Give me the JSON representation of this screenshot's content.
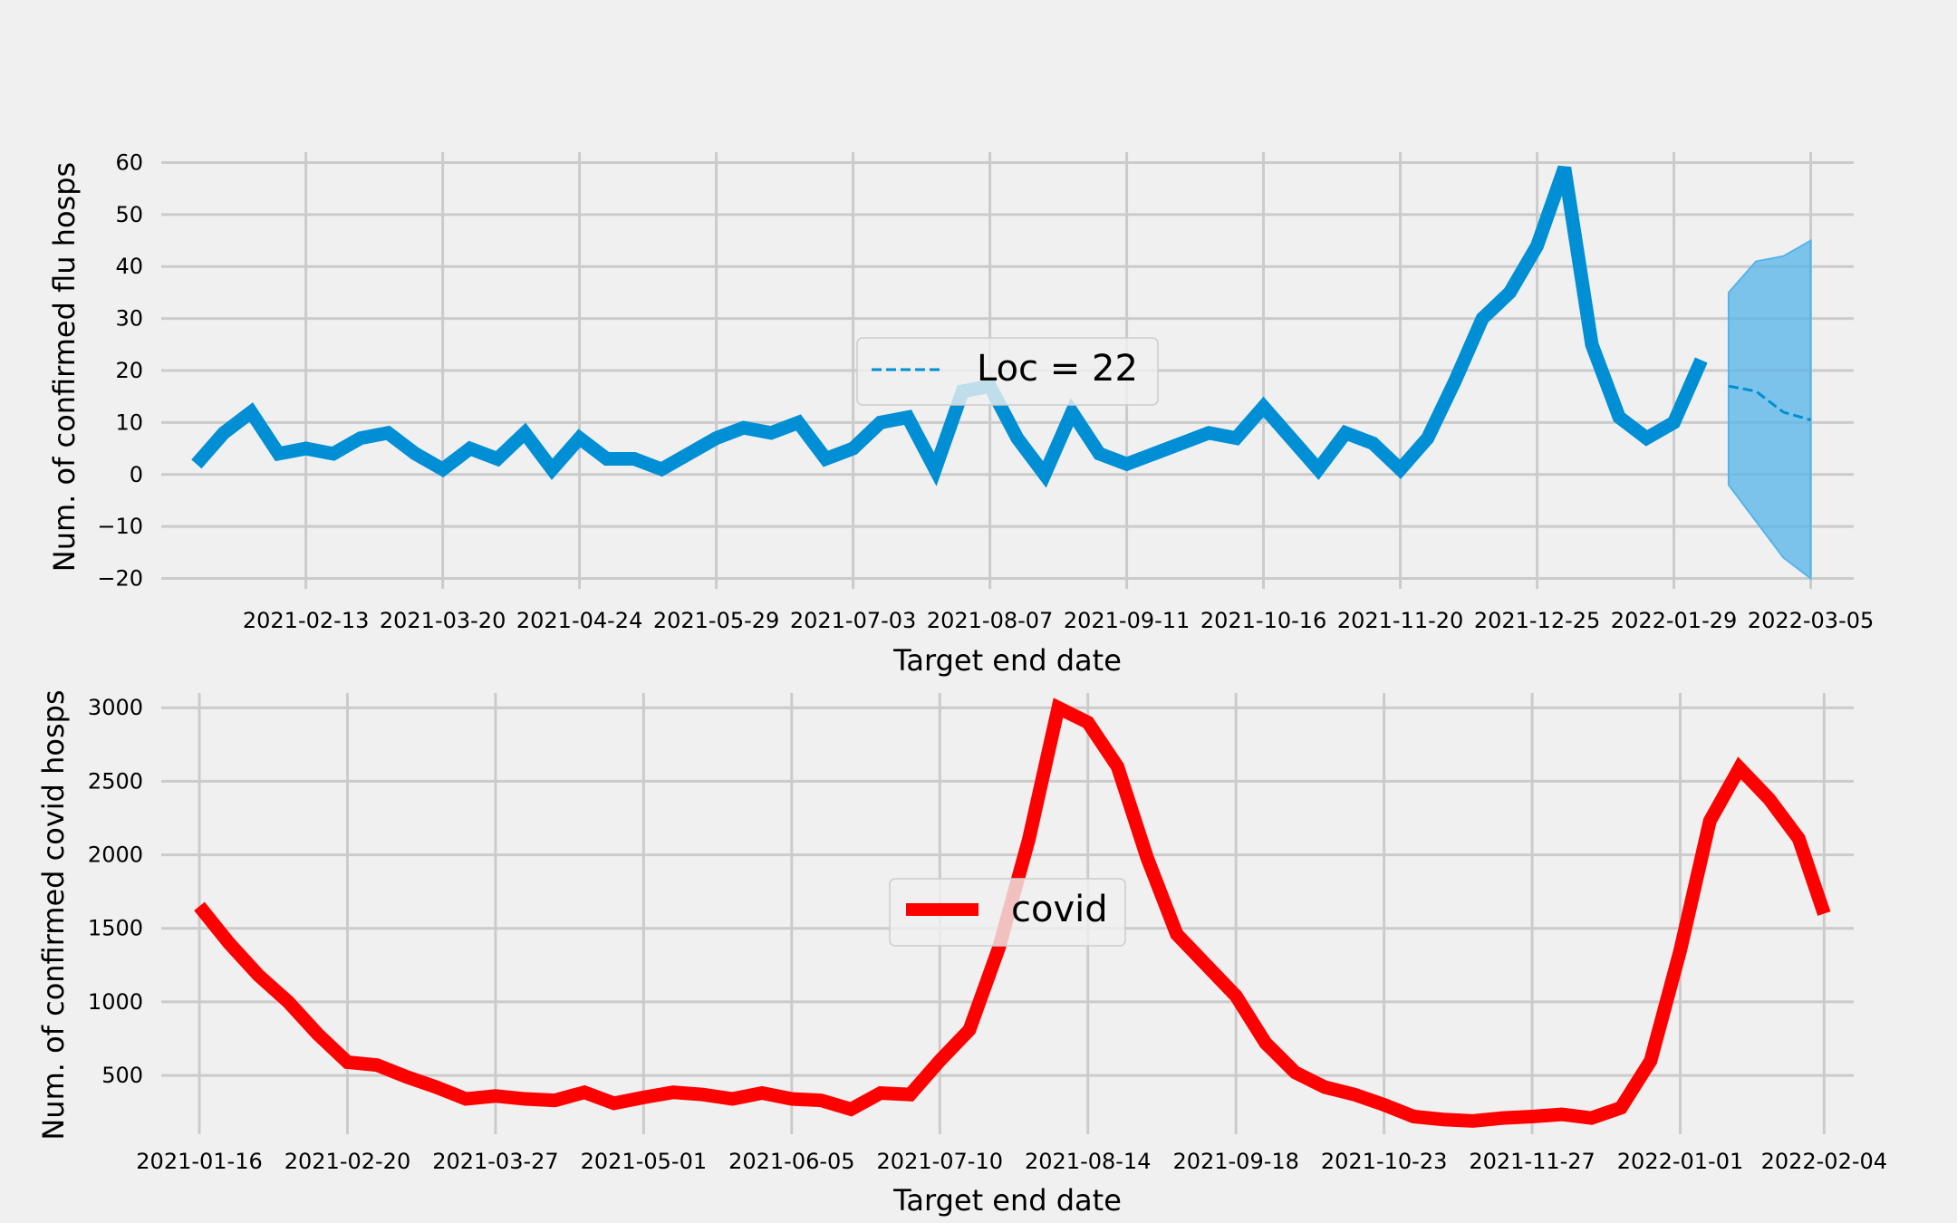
{
  "chart_data": [
    {
      "type": "line",
      "ylabel": "Num. of confirmed flu hosps",
      "xlabel": "Target end date",
      "ylim": [
        -22,
        62
      ],
      "yticks": [
        -20,
        -10,
        0,
        10,
        20,
        30,
        40,
        50,
        60
      ],
      "ytick_labels": [
        "−20",
        "−10",
        "0",
        "10",
        "20",
        "30",
        "40",
        "50",
        "60"
      ],
      "xticks": [
        "2021-02-13",
        "2021-03-20",
        "2021-04-24",
        "2021-05-29",
        "2021-07-03",
        "2021-08-07",
        "2021-09-11",
        "2021-10-16",
        "2021-11-20",
        "2021-12-25",
        "2022-01-29",
        "2022-03-05"
      ],
      "xlim": [
        "2021-01-07",
        "2022-03-16"
      ],
      "grid": true,
      "legend": {
        "placement": "center",
        "entries": [
          "Loc = 22"
        ]
      },
      "series": [
        {
          "name": "",
          "style": "solid",
          "color": "#008fd5",
          "points": [
            [
              "2021-01-16",
              2
            ],
            [
              "2021-01-23",
              8
            ],
            [
              "2021-01-30",
              12
            ],
            [
              "2021-02-06",
              4
            ],
            [
              "2021-02-13",
              5
            ],
            [
              "2021-02-20",
              4
            ],
            [
              "2021-02-27",
              7
            ],
            [
              "2021-03-06",
              8
            ],
            [
              "2021-03-13",
              4
            ],
            [
              "2021-03-20",
              1
            ],
            [
              "2021-03-27",
              5
            ],
            [
              "2021-04-03",
              3
            ],
            [
              "2021-04-10",
              8
            ],
            [
              "2021-04-17",
              1
            ],
            [
              "2021-04-24",
              7
            ],
            [
              "2021-05-01",
              3
            ],
            [
              "2021-05-08",
              3
            ],
            [
              "2021-05-15",
              1
            ],
            [
              "2021-05-22",
              4
            ],
            [
              "2021-05-29",
              7
            ],
            [
              "2021-06-05",
              9
            ],
            [
              "2021-06-12",
              8
            ],
            [
              "2021-06-19",
              10
            ],
            [
              "2021-06-26",
              3
            ],
            [
              "2021-07-03",
              5
            ],
            [
              "2021-07-10",
              10
            ],
            [
              "2021-07-17",
              11
            ],
            [
              "2021-07-24",
              1
            ],
            [
              "2021-07-31",
              16
            ],
            [
              "2021-08-07",
              17
            ],
            [
              "2021-08-14",
              7
            ],
            [
              "2021-08-21",
              0
            ],
            [
              "2021-08-28",
              12
            ],
            [
              "2021-09-04",
              4
            ],
            [
              "2021-09-11",
              2
            ],
            [
              "2021-09-18",
              4
            ],
            [
              "2021-09-25",
              6
            ],
            [
              "2021-10-02",
              8
            ],
            [
              "2021-10-09",
              7
            ],
            [
              "2021-10-16",
              13
            ],
            [
              "2021-10-23",
              7
            ],
            [
              "2021-10-30",
              1
            ],
            [
              "2021-11-06",
              8
            ],
            [
              "2021-11-13",
              6
            ],
            [
              "2021-11-20",
              1
            ],
            [
              "2021-11-27",
              7
            ],
            [
              "2021-12-04",
              18
            ],
            [
              "2021-12-11",
              30
            ],
            [
              "2021-12-18",
              35
            ],
            [
              "2021-12-25",
              44
            ],
            [
              "2022-01-01",
              59
            ],
            [
              "2022-01-08",
              25
            ],
            [
              "2022-01-15",
              11
            ],
            [
              "2022-01-22",
              7
            ],
            [
              "2022-01-29",
              10
            ],
            [
              "2022-02-05",
              22
            ]
          ]
        },
        {
          "name": "Loc = 22",
          "style": "dashed",
          "color": "#008fd5",
          "points": [
            [
              "2022-02-12",
              17
            ],
            [
              "2022-02-19",
              16
            ],
            [
              "2022-02-26",
              12
            ],
            [
              "2022-03-05",
              10.5
            ]
          ]
        }
      ],
      "band": {
        "color": "#56b4e9",
        "x": [
          "2022-02-12",
          "2022-02-19",
          "2022-02-26",
          "2022-03-05"
        ],
        "lower": [
          -2,
          -9,
          -16,
          -20
        ],
        "upper": [
          35,
          41,
          42,
          45
        ]
      }
    },
    {
      "type": "line",
      "ylabel": "Num. of confirmed covid hosps",
      "xlabel": "Target end date",
      "ylim": [
        100,
        3100
      ],
      "yticks": [
        500,
        1000,
        1500,
        2000,
        2500,
        3000
      ],
      "ytick_labels": [
        "500",
        "1000",
        "1500",
        "2000",
        "2500",
        "3000"
      ],
      "xticks": [
        "2021-01-16",
        "2021-02-20",
        "2021-03-27",
        "2021-05-01",
        "2021-06-05",
        "2021-07-10",
        "2021-08-14",
        "2021-09-18",
        "2021-10-23",
        "2021-11-27",
        "2022-01-01",
        "2022-02-04"
      ],
      "xlim": [
        "2021-01-07",
        "2022-02-11"
      ],
      "grid": true,
      "legend": {
        "placement": "center",
        "entries": [
          "covid"
        ]
      },
      "series": [
        {
          "name": "covid",
          "style": "solid",
          "color": "#ff0000",
          "points": [
            [
              "2021-01-16",
              1650
            ],
            [
              "2021-01-23",
              1400
            ],
            [
              "2021-01-30",
              1180
            ],
            [
              "2021-02-06",
              1000
            ],
            [
              "2021-02-13",
              780
            ],
            [
              "2021-02-20",
              590
            ],
            [
              "2021-02-27",
              570
            ],
            [
              "2021-03-06",
              490
            ],
            [
              "2021-03-13",
              420
            ],
            [
              "2021-03-20",
              340
            ],
            [
              "2021-03-27",
              360
            ],
            [
              "2021-04-03",
              340
            ],
            [
              "2021-04-10",
              330
            ],
            [
              "2021-04-17",
              385
            ],
            [
              "2021-04-24",
              310
            ],
            [
              "2021-05-01",
              350
            ],
            [
              "2021-05-08",
              385
            ],
            [
              "2021-05-15",
              370
            ],
            [
              "2021-05-22",
              340
            ],
            [
              "2021-05-29",
              380
            ],
            [
              "2021-06-05",
              340
            ],
            [
              "2021-06-12",
              330
            ],
            [
              "2021-06-19",
              270
            ],
            [
              "2021-06-26",
              380
            ],
            [
              "2021-07-03",
              370
            ],
            [
              "2021-07-10",
              600
            ],
            [
              "2021-07-17",
              810
            ],
            [
              "2021-07-24",
              1370
            ],
            [
              "2021-07-31",
              2100
            ],
            [
              "2021-08-07",
              3000
            ],
            [
              "2021-08-14",
              2900
            ],
            [
              "2021-08-21",
              2600
            ],
            [
              "2021-08-28",
              1980
            ],
            [
              "2021-09-04",
              1460
            ],
            [
              "2021-09-11",
              1250
            ],
            [
              "2021-09-18",
              1040
            ],
            [
              "2021-09-25",
              720
            ],
            [
              "2021-10-02",
              520
            ],
            [
              "2021-10-09",
              420
            ],
            [
              "2021-10-16",
              370
            ],
            [
              "2021-10-23",
              300
            ],
            [
              "2021-10-30",
              220
            ],
            [
              "2021-11-06",
              200
            ],
            [
              "2021-11-13",
              190
            ],
            [
              "2021-11-20",
              210
            ],
            [
              "2021-11-27",
              220
            ],
            [
              "2021-12-04",
              235
            ],
            [
              "2021-12-11",
              210
            ],
            [
              "2021-12-18",
              280
            ],
            [
              "2021-12-25",
              600
            ],
            [
              "2022-01-01",
              1350
            ],
            [
              "2022-01-08",
              2230
            ],
            [
              "2022-01-15",
              2590
            ],
            [
              "2022-01-22",
              2380
            ],
            [
              "2022-01-29",
              2110
            ],
            [
              "2022-02-04",
              1600
            ]
          ]
        }
      ]
    }
  ]
}
